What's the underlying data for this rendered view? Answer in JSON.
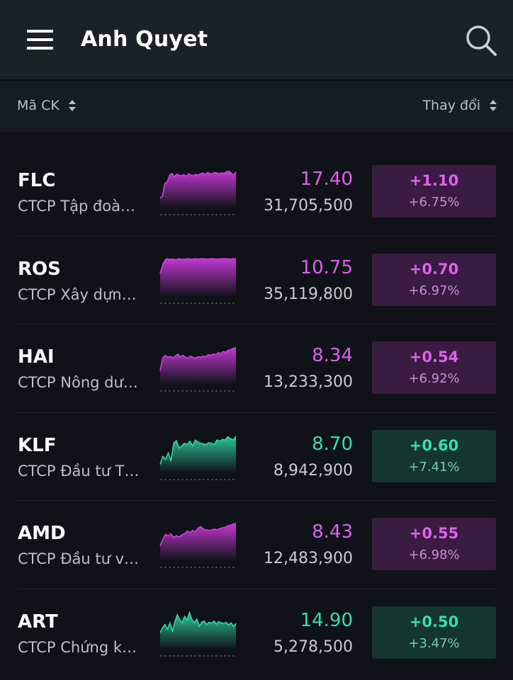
{
  "header": {
    "title": "Anh Quyet",
    "menu_icon": "hamburger-menu-icon",
    "search_icon": "search-icon"
  },
  "sort_bar": {
    "left_label": "Mã CK",
    "right_label": "Thay đổi"
  },
  "colors": {
    "purple_price": "#e05ff0",
    "green_price": "#35e0ac",
    "purple_box": "#3a1c43",
    "green_box": "#14362f"
  },
  "stocks": [
    {
      "symbol": "FLC",
      "company": "CTCP Tập đoàn FLC",
      "price": "17.40",
      "volume": "31,705,500",
      "change": "+1.10",
      "change_pct": "+6.75%",
      "color": "purple",
      "trend": [
        0.1,
        0.15,
        0.55,
        0.6,
        0.8,
        0.85,
        0.75,
        0.83,
        0.8,
        0.78,
        0.82,
        0.76,
        0.84,
        0.8,
        0.78,
        0.82,
        0.8,
        0.84,
        0.86,
        0.82,
        0.88,
        0.85,
        0.84,
        0.88,
        0.86,
        0.84,
        0.87,
        0.85,
        0.9,
        0.92,
        0.86,
        0.8,
        0.9
      ]
    },
    {
      "symbol": "ROS",
      "company": "CTCP Xây dựng FLC Faros",
      "price": "10.75",
      "volume": "35,119,800",
      "change": "+0.70",
      "change_pct": "+6.97%",
      "color": "purple",
      "trend": [
        0.5,
        0.82,
        0.95,
        0.93,
        0.94,
        0.92,
        0.95,
        0.93,
        0.94,
        0.95,
        0.93,
        0.95,
        0.94,
        0.95,
        0.95,
        0.94,
        0.95,
        0.95,
        0.94,
        0.95,
        0.95,
        0.95,
        0.94,
        0.95,
        0.95
      ]
    },
    {
      "symbol": "HAI",
      "company": "CTCP Nông dược H.A.I",
      "price": "8.34",
      "volume": "13,233,300",
      "change": "+0.54",
      "change_pct": "+6.92%",
      "color": "purple",
      "trend": [
        0.2,
        0.6,
        0.68,
        0.62,
        0.65,
        0.6,
        0.66,
        0.72,
        0.64,
        0.68,
        0.62,
        0.6,
        0.66,
        0.62,
        0.6,
        0.64,
        0.62,
        0.66,
        0.64,
        0.7,
        0.68,
        0.72,
        0.7,
        0.76,
        0.74,
        0.8,
        0.78,
        0.84,
        0.86,
        0.9,
        0.92
      ]
    },
    {
      "symbol": "KLF",
      "company": "CTCP Đầu tư Thương mại và XNK CFS",
      "price": "8.70",
      "volume": "8,942,900",
      "change": "+0.60",
      "change_pct": "+7.41%",
      "color": "green",
      "trend": [
        0.05,
        0.3,
        0.2,
        0.4,
        0.15,
        0.7,
        0.78,
        0.55,
        0.62,
        0.7,
        0.66,
        0.76,
        0.62,
        0.8,
        0.74,
        0.7,
        0.68,
        0.66,
        0.72,
        0.7,
        0.66,
        0.8,
        0.76,
        0.82,
        0.8,
        0.9,
        0.84,
        0.8,
        0.92
      ]
    },
    {
      "symbol": "AMD",
      "company": "CTCP Đầu tư và Khoáng sản FLC Stone",
      "price": "8.43",
      "volume": "12,483,900",
      "change": "+0.55",
      "change_pct": "+6.98%",
      "color": "purple",
      "trend": [
        0.25,
        0.45,
        0.6,
        0.55,
        0.62,
        0.5,
        0.56,
        0.52,
        0.58,
        0.62,
        0.7,
        0.66,
        0.72,
        0.68,
        0.8,
        0.84,
        0.76,
        0.74,
        0.72,
        0.74,
        0.76,
        0.74,
        0.78,
        0.8,
        0.82,
        0.86,
        0.88,
        0.92,
        0.94
      ]
    },
    {
      "symbol": "ART",
      "company": "CTCP Chứng khoán BOS",
      "price": "14.90",
      "volume": "5,278,500",
      "change": "+0.50",
      "change_pct": "+3.47%",
      "color": "green",
      "trend": [
        0.3,
        0.45,
        0.55,
        0.4,
        0.6,
        0.35,
        0.62,
        0.85,
        0.7,
        0.6,
        0.8,
        0.68,
        0.92,
        0.7,
        0.6,
        0.72,
        0.5,
        0.62,
        0.66,
        0.55,
        0.62,
        0.58,
        0.66,
        0.56,
        0.64,
        0.6,
        0.58,
        0.62,
        0.54,
        0.6,
        0.5,
        0.58
      ]
    }
  ]
}
